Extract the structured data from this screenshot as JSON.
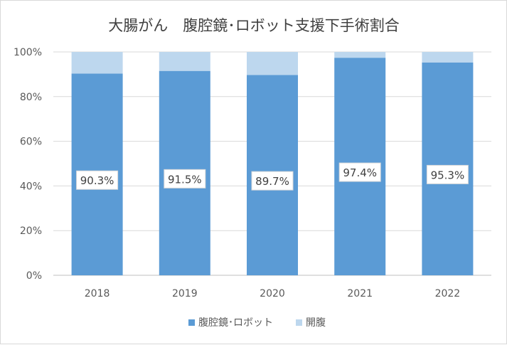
{
  "chart_data": {
    "type": "bar",
    "stacked": true,
    "title": "大腸がん　腹腔鏡･ロボット支援下手術割合",
    "categories": [
      "2018",
      "2019",
      "2020",
      "2021",
      "2022"
    ],
    "series": [
      {
        "name": "腹腔鏡･ロボット",
        "values": [
          90.3,
          91.5,
          89.7,
          97.4,
          95.3
        ],
        "color": "#5b9bd5",
        "data_labels": [
          "90.3%",
          "91.5%",
          "89.7%",
          "97.4%",
          "95.3%"
        ]
      },
      {
        "name": "開腹",
        "values": [
          9.7,
          8.5,
          10.3,
          2.6,
          4.7
        ],
        "color": "#bdd7ee"
      }
    ],
    "y_ticks": [
      "0%",
      "20%",
      "40%",
      "60%",
      "80%",
      "100%"
    ],
    "ylim": [
      0,
      100
    ],
    "grid": true,
    "legend_position": "bottom"
  }
}
